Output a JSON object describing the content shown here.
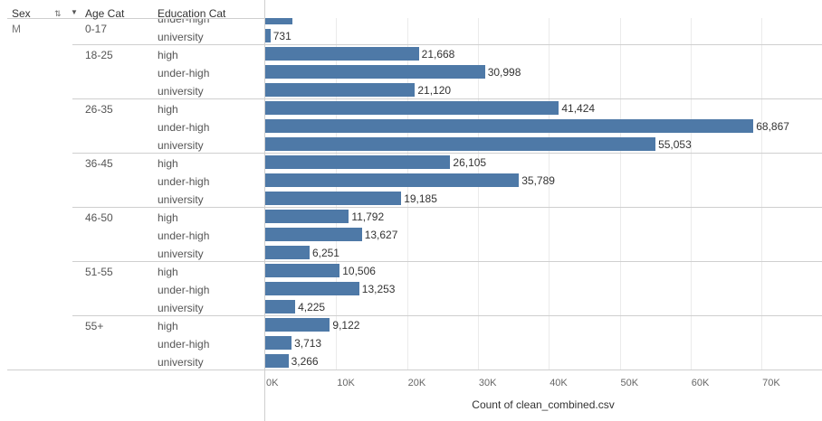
{
  "headers": {
    "sex": "Sex",
    "age_cat": "Age Cat",
    "education_cat": "Education Cat"
  },
  "sort_icon": "sort-descending-icon",
  "sex_value": "M",
  "bar_color": "#4e79a7",
  "chart_data": {
    "type": "bar",
    "orientation": "horizontal",
    "xlabel": "Count of clean_combined.csv",
    "xlim": [
      0,
      70000
    ],
    "x_ticks": [
      "0K",
      "10K",
      "20K",
      "30K",
      "40K",
      "50K",
      "60K",
      "70K"
    ],
    "groups": [
      {
        "age": "0-17",
        "rows": [
          {
            "edu": "under-high",
            "value": 3800,
            "label": ""
          },
          {
            "edu": "university",
            "value": 731,
            "label": "731"
          }
        ]
      },
      {
        "age": "18-25",
        "rows": [
          {
            "edu": "high",
            "value": 21668,
            "label": "21,668"
          },
          {
            "edu": "under-high",
            "value": 30998,
            "label": "30,998"
          },
          {
            "edu": "university",
            "value": 21120,
            "label": "21,120"
          }
        ]
      },
      {
        "age": "26-35",
        "rows": [
          {
            "edu": "high",
            "value": 41424,
            "label": "41,424"
          },
          {
            "edu": "under-high",
            "value": 68867,
            "label": "68,867"
          },
          {
            "edu": "university",
            "value": 55053,
            "label": "55,053"
          }
        ]
      },
      {
        "age": "36-45",
        "rows": [
          {
            "edu": "high",
            "value": 26105,
            "label": "26,105"
          },
          {
            "edu": "under-high",
            "value": 35789,
            "label": "35,789"
          },
          {
            "edu": "university",
            "value": 19185,
            "label": "19,185"
          }
        ]
      },
      {
        "age": "46-50",
        "rows": [
          {
            "edu": "high",
            "value": 11792,
            "label": "11,792"
          },
          {
            "edu": "under-high",
            "value": 13627,
            "label": "13,627"
          },
          {
            "edu": "university",
            "value": 6251,
            "label": "6,251"
          }
        ]
      },
      {
        "age": "51-55",
        "rows": [
          {
            "edu": "high",
            "value": 10506,
            "label": "10,506"
          },
          {
            "edu": "under-high",
            "value": 13253,
            "label": "13,253"
          },
          {
            "edu": "university",
            "value": 4225,
            "label": "4,225"
          }
        ]
      },
      {
        "age": "55+",
        "rows": [
          {
            "edu": "high",
            "value": 9122,
            "label": "9,122"
          },
          {
            "edu": "under-high",
            "value": 3713,
            "label": "3,713"
          },
          {
            "edu": "university",
            "value": 3266,
            "label": "3,266"
          }
        ]
      }
    ]
  }
}
